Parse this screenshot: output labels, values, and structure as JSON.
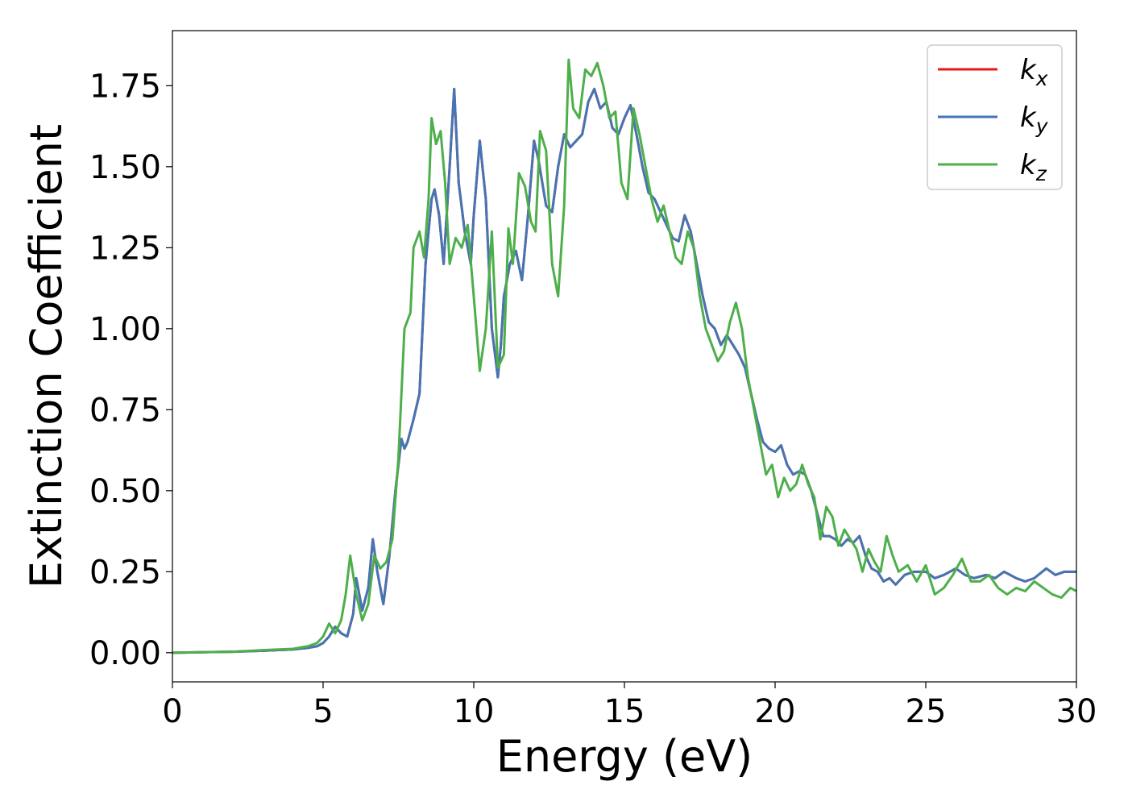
{
  "chart_data": {
    "type": "line",
    "title": "",
    "xlabel": "Energy (eV)",
    "ylabel": "Extinction Coefficient",
    "xlim": [
      0,
      30
    ],
    "ylim": [
      -0.09,
      1.92
    ],
    "xticks": [
      0,
      5,
      10,
      15,
      20,
      25,
      30
    ],
    "xtick_labels": [
      "0",
      "5",
      "10",
      "15",
      "20",
      "25",
      "30"
    ],
    "yticks": [
      0.0,
      0.25,
      0.5,
      0.75,
      1.0,
      1.25,
      1.5,
      1.75
    ],
    "ytick_labels": [
      "0.00",
      "0.25",
      "0.50",
      "0.75",
      "1.00",
      "1.25",
      "1.50",
      "1.75"
    ],
    "grid": false,
    "legend_position": "top-right",
    "series": [
      {
        "name": "k_x",
        "color": "#e41a1c",
        "x": [
          0,
          2,
          3,
          4,
          4.5,
          4.8,
          5.0,
          5.2,
          5.4,
          5.6,
          5.8,
          6.0,
          6.1,
          6.3,
          6.5,
          6.65,
          6.8,
          7.0,
          7.2,
          7.4,
          7.6,
          7.7,
          7.8,
          8.0,
          8.2,
          8.4,
          8.6,
          8.7,
          8.85,
          9.0,
          9.2,
          9.35,
          9.5,
          9.7,
          9.9,
          10.0,
          10.2,
          10.4,
          10.6,
          10.8,
          10.9,
          11.0,
          11.2,
          11.4,
          11.6,
          11.8,
          12.0,
          12.15,
          12.4,
          12.6,
          12.8,
          13.0,
          13.2,
          13.4,
          13.6,
          13.8,
          14.0,
          14.2,
          14.4,
          14.6,
          14.8,
          15.0,
          15.2,
          15.4,
          15.6,
          15.8,
          16.0,
          16.2,
          16.4,
          16.6,
          16.8,
          17.0,
          17.2,
          17.4,
          17.6,
          17.8,
          18.0,
          18.2,
          18.4,
          18.6,
          18.8,
          19.0,
          19.2,
          19.4,
          19.6,
          19.8,
          20.0,
          20.2,
          20.4,
          20.6,
          20.8,
          21.0,
          21.2,
          21.4,
          21.6,
          21.8,
          22.0,
          22.2,
          22.4,
          22.6,
          22.8,
          23.0,
          23.2,
          23.4,
          23.6,
          23.8,
          24.0,
          24.3,
          24.6,
          25.0,
          25.3,
          25.6,
          26.0,
          26.3,
          26.6,
          27.0,
          27.3,
          27.6,
          28.0,
          28.3,
          28.6,
          29.0,
          29.3,
          29.6,
          30.0
        ],
        "y": [
          0.0,
          0.003,
          0.006,
          0.01,
          0.015,
          0.02,
          0.03,
          0.05,
          0.08,
          0.06,
          0.05,
          0.12,
          0.23,
          0.13,
          0.2,
          0.35,
          0.25,
          0.15,
          0.3,
          0.5,
          0.66,
          0.63,
          0.65,
          0.72,
          0.8,
          1.2,
          1.4,
          1.43,
          1.35,
          1.2,
          1.5,
          1.74,
          1.45,
          1.3,
          1.2,
          1.35,
          1.58,
          1.4,
          1.0,
          0.85,
          0.95,
          1.1,
          1.2,
          1.24,
          1.15,
          1.35,
          1.58,
          1.52,
          1.38,
          1.36,
          1.5,
          1.6,
          1.56,
          1.58,
          1.6,
          1.7,
          1.74,
          1.68,
          1.7,
          1.62,
          1.6,
          1.65,
          1.69,
          1.6,
          1.5,
          1.42,
          1.4,
          1.36,
          1.32,
          1.28,
          1.27,
          1.35,
          1.3,
          1.2,
          1.1,
          1.02,
          1.0,
          0.95,
          0.98,
          0.95,
          0.92,
          0.88,
          0.8,
          0.72,
          0.65,
          0.63,
          0.62,
          0.64,
          0.58,
          0.55,
          0.56,
          0.55,
          0.5,
          0.43,
          0.36,
          0.36,
          0.35,
          0.33,
          0.35,
          0.34,
          0.36,
          0.3,
          0.26,
          0.25,
          0.22,
          0.23,
          0.21,
          0.24,
          0.25,
          0.25,
          0.23,
          0.24,
          0.26,
          0.24,
          0.23,
          0.24,
          0.23,
          0.25,
          0.23,
          0.22,
          0.23,
          0.26,
          0.24,
          0.25,
          0.25
        ]
      },
      {
        "name": "k_y",
        "color": "#4575b4",
        "x": [
          0,
          2,
          3,
          4,
          4.5,
          4.8,
          5.0,
          5.2,
          5.4,
          5.6,
          5.8,
          6.0,
          6.1,
          6.3,
          6.5,
          6.65,
          6.8,
          7.0,
          7.2,
          7.4,
          7.6,
          7.7,
          7.8,
          8.0,
          8.2,
          8.4,
          8.6,
          8.7,
          8.85,
          9.0,
          9.2,
          9.35,
          9.5,
          9.7,
          9.9,
          10.0,
          10.2,
          10.4,
          10.6,
          10.8,
          10.9,
          11.0,
          11.2,
          11.4,
          11.6,
          11.8,
          12.0,
          12.15,
          12.4,
          12.6,
          12.8,
          13.0,
          13.2,
          13.4,
          13.6,
          13.8,
          14.0,
          14.2,
          14.4,
          14.6,
          14.8,
          15.0,
          15.2,
          15.4,
          15.6,
          15.8,
          16.0,
          16.2,
          16.4,
          16.6,
          16.8,
          17.0,
          17.2,
          17.4,
          17.6,
          17.8,
          18.0,
          18.2,
          18.4,
          18.6,
          18.8,
          19.0,
          19.2,
          19.4,
          19.6,
          19.8,
          20.0,
          20.2,
          20.4,
          20.6,
          20.8,
          21.0,
          21.2,
          21.4,
          21.6,
          21.8,
          22.0,
          22.2,
          22.4,
          22.6,
          22.8,
          23.0,
          23.2,
          23.4,
          23.6,
          23.8,
          24.0,
          24.3,
          24.6,
          25.0,
          25.3,
          25.6,
          26.0,
          26.3,
          26.6,
          27.0,
          27.3,
          27.6,
          28.0,
          28.3,
          28.6,
          29.0,
          29.3,
          29.6,
          30.0
        ],
        "y": [
          0.0,
          0.003,
          0.006,
          0.01,
          0.015,
          0.02,
          0.03,
          0.05,
          0.08,
          0.06,
          0.05,
          0.12,
          0.23,
          0.13,
          0.2,
          0.35,
          0.25,
          0.15,
          0.3,
          0.5,
          0.66,
          0.63,
          0.65,
          0.72,
          0.8,
          1.2,
          1.4,
          1.43,
          1.35,
          1.2,
          1.5,
          1.74,
          1.45,
          1.3,
          1.2,
          1.35,
          1.58,
          1.4,
          1.0,
          0.85,
          0.95,
          1.1,
          1.2,
          1.24,
          1.15,
          1.35,
          1.58,
          1.52,
          1.38,
          1.36,
          1.5,
          1.6,
          1.56,
          1.58,
          1.6,
          1.7,
          1.74,
          1.68,
          1.7,
          1.62,
          1.6,
          1.65,
          1.69,
          1.6,
          1.5,
          1.42,
          1.4,
          1.36,
          1.32,
          1.28,
          1.27,
          1.35,
          1.3,
          1.2,
          1.1,
          1.02,
          1.0,
          0.95,
          0.98,
          0.95,
          0.92,
          0.88,
          0.8,
          0.72,
          0.65,
          0.63,
          0.62,
          0.64,
          0.58,
          0.55,
          0.56,
          0.55,
          0.5,
          0.43,
          0.36,
          0.36,
          0.35,
          0.33,
          0.35,
          0.34,
          0.36,
          0.3,
          0.26,
          0.25,
          0.22,
          0.23,
          0.21,
          0.24,
          0.25,
          0.25,
          0.23,
          0.24,
          0.26,
          0.24,
          0.23,
          0.24,
          0.23,
          0.25,
          0.23,
          0.22,
          0.23,
          0.26,
          0.24,
          0.25,
          0.25
        ]
      },
      {
        "name": "k_z",
        "color": "#4daf4a",
        "x": [
          0,
          2,
          3,
          4,
          4.5,
          4.8,
          5.0,
          5.2,
          5.4,
          5.6,
          5.75,
          5.9,
          6.1,
          6.3,
          6.5,
          6.7,
          6.9,
          7.1,
          7.3,
          7.5,
          7.7,
          7.9,
          8.0,
          8.2,
          8.35,
          8.5,
          8.6,
          8.75,
          8.9,
          9.05,
          9.2,
          9.4,
          9.6,
          9.8,
          10.0,
          10.2,
          10.4,
          10.6,
          10.8,
          11.0,
          11.15,
          11.3,
          11.5,
          11.7,
          11.9,
          12.05,
          12.2,
          12.4,
          12.6,
          12.8,
          13.0,
          13.15,
          13.3,
          13.5,
          13.7,
          13.9,
          14.1,
          14.3,
          14.5,
          14.7,
          14.9,
          15.1,
          15.3,
          15.5,
          15.7,
          15.9,
          16.1,
          16.3,
          16.5,
          16.7,
          16.9,
          17.1,
          17.3,
          17.5,
          17.7,
          17.9,
          18.1,
          18.3,
          18.5,
          18.7,
          18.9,
          19.1,
          19.3,
          19.5,
          19.7,
          19.9,
          20.1,
          20.3,
          20.5,
          20.7,
          20.9,
          21.1,
          21.3,
          21.5,
          21.7,
          21.9,
          22.1,
          22.3,
          22.5,
          22.7,
          22.9,
          23.1,
          23.3,
          23.5,
          23.7,
          23.9,
          24.1,
          24.4,
          24.7,
          25.0,
          25.3,
          25.6,
          25.9,
          26.2,
          26.5,
          26.8,
          27.1,
          27.4,
          27.7,
          28.0,
          28.3,
          28.6,
          28.9,
          29.2,
          29.5,
          29.8,
          30.0
        ],
        "y": [
          0.0,
          0.003,
          0.008,
          0.012,
          0.02,
          0.03,
          0.05,
          0.09,
          0.06,
          0.1,
          0.18,
          0.3,
          0.18,
          0.1,
          0.15,
          0.3,
          0.26,
          0.28,
          0.35,
          0.6,
          1.0,
          1.05,
          1.25,
          1.3,
          1.22,
          1.4,
          1.65,
          1.57,
          1.61,
          1.45,
          1.2,
          1.28,
          1.25,
          1.32,
          1.1,
          0.87,
          1.0,
          1.3,
          0.88,
          0.92,
          1.31,
          1.2,
          1.48,
          1.44,
          1.33,
          1.3,
          1.61,
          1.55,
          1.2,
          1.1,
          1.38,
          1.83,
          1.68,
          1.65,
          1.8,
          1.78,
          1.82,
          1.75,
          1.65,
          1.67,
          1.45,
          1.4,
          1.68,
          1.6,
          1.5,
          1.4,
          1.33,
          1.38,
          1.3,
          1.22,
          1.2,
          1.3,
          1.25,
          1.1,
          1.0,
          0.95,
          0.9,
          0.93,
          1.02,
          1.08,
          1.0,
          0.85,
          0.75,
          0.65,
          0.55,
          0.58,
          0.48,
          0.54,
          0.5,
          0.52,
          0.58,
          0.52,
          0.48,
          0.35,
          0.45,
          0.42,
          0.33,
          0.38,
          0.35,
          0.32,
          0.25,
          0.32,
          0.28,
          0.25,
          0.36,
          0.3,
          0.25,
          0.27,
          0.22,
          0.27,
          0.18,
          0.2,
          0.24,
          0.29,
          0.22,
          0.22,
          0.24,
          0.2,
          0.18,
          0.2,
          0.19,
          0.22,
          0.2,
          0.18,
          0.17,
          0.2,
          0.19
        ]
      }
    ]
  },
  "legend": {
    "items": [
      {
        "base": "k",
        "sub": "x",
        "color": "#e41a1c"
      },
      {
        "base": "k",
        "sub": "y",
        "color": "#4575b4"
      },
      {
        "base": "k",
        "sub": "z",
        "color": "#4daf4a"
      }
    ]
  }
}
